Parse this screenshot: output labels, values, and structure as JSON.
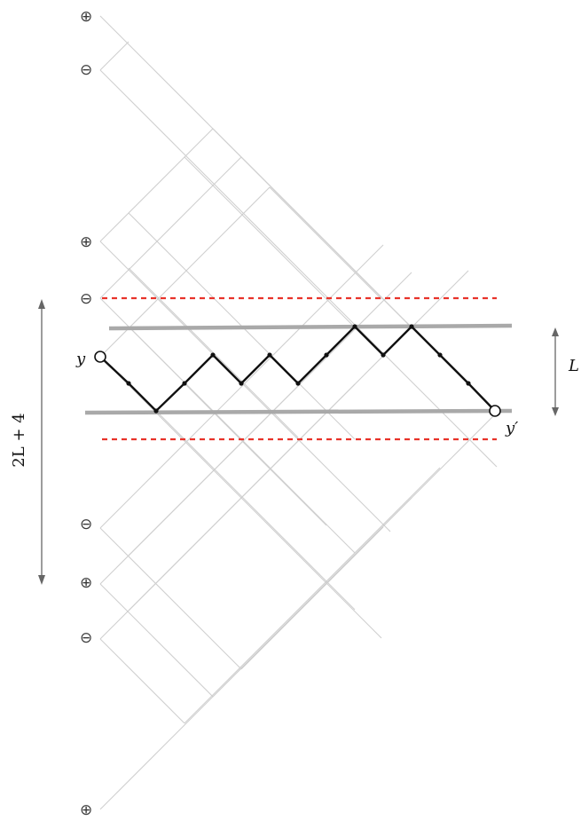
{
  "signs": [
    "⊕",
    "⊖",
    "⊕",
    "⊖",
    "⊖",
    "⊕",
    "⊖",
    "⊕"
  ],
  "labels": {
    "start": "y",
    "end": "y′",
    "window_height": "L",
    "strip_height": "2L + 4"
  },
  "colors": {
    "grid": "#cfcfcf",
    "band": "#a9a9a9",
    "dashed": "#e8332a",
    "path": "#111111",
    "arrow": "#666666"
  }
}
